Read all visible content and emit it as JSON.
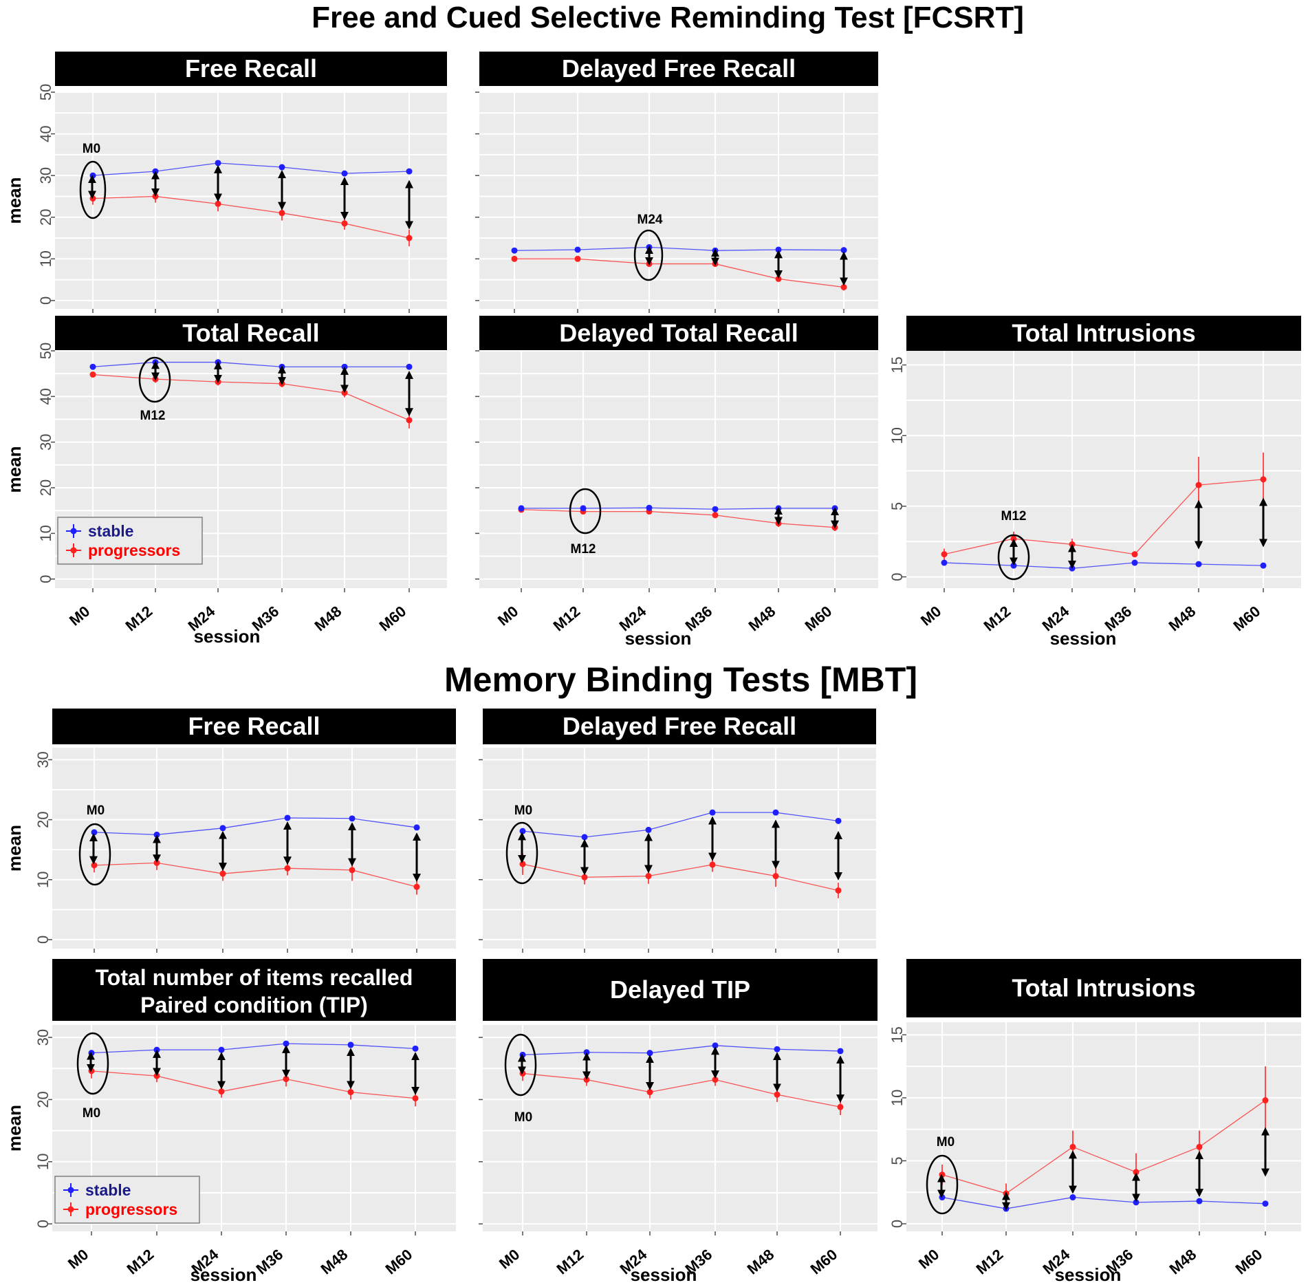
{
  "colors": {
    "stable": "#1f1fff",
    "progressors": "#ff2020",
    "panel": "#ebebeb",
    "strip": "#000000"
  },
  "sections": [
    {
      "title": "Free and Cued Selective Reminding Test [FCSRT]"
    },
    {
      "title": "Memory Binding Tests [MBT]"
    }
  ],
  "chart_data": [
    {
      "type": "line",
      "section": "FCSRT",
      "title": "Free Recall",
      "categories": [
        "M0",
        "M12",
        "M24",
        "M36",
        "M48",
        "M60"
      ],
      "ylim": [
        -2,
        50
      ],
      "yticks": [
        0,
        10,
        20,
        30,
        40,
        50
      ],
      "ylabel": "mean",
      "xlabel": "",
      "series": [
        {
          "name": "stable",
          "values": [
            30,
            31,
            33,
            32,
            30.5,
            31
          ],
          "err": [
            0.4,
            0.4,
            0.4,
            0.4,
            0.4,
            0.4
          ]
        },
        {
          "name": "progressors",
          "values": [
            24.5,
            25,
            23.2,
            21,
            18.5,
            15
          ],
          "err": [
            1.5,
            1.5,
            1.8,
            1.8,
            1.5,
            2
          ]
        }
      ],
      "annotation": {
        "label": "M0",
        "category": "M0"
      }
    },
    {
      "type": "line",
      "section": "FCSRT",
      "title": "Delayed Free Recall",
      "categories": [
        "M0",
        "M12",
        "M24",
        "M36",
        "M48",
        "M60"
      ],
      "ylim": [
        -2,
        50
      ],
      "yticks": [],
      "ylabel": "",
      "xlabel": "",
      "series": [
        {
          "name": "stable",
          "values": [
            12,
            12.2,
            12.8,
            12,
            12.2,
            12.1
          ],
          "err": [
            0.3,
            0.3,
            0.3,
            0.3,
            0.3,
            0.3
          ]
        },
        {
          "name": "progressors",
          "values": [
            10,
            10,
            8.8,
            8.8,
            5.2,
            3.2
          ],
          "err": [
            0.4,
            0.4,
            0.6,
            0.6,
            0.6,
            0.8
          ]
        }
      ],
      "annotation": {
        "label": "M24",
        "category": "M24"
      }
    },
    {
      "type": "line",
      "section": "FCSRT",
      "title": "Total Recall",
      "categories": [
        "M0",
        "M12",
        "M24",
        "M36",
        "M48",
        "M60"
      ],
      "ylim": [
        -2,
        50
      ],
      "yticks": [
        0,
        10,
        20,
        30,
        40,
        50
      ],
      "ylabel": "mean",
      "xlabel": "session",
      "series": [
        {
          "name": "stable",
          "values": [
            46.5,
            47.5,
            47.5,
            46.5,
            46.5,
            46.5
          ],
          "err": [
            0.3,
            0.3,
            0.3,
            0.3,
            0.3,
            0.3
          ]
        },
        {
          "name": "progressors",
          "values": [
            44.8,
            43.8,
            43.2,
            42.8,
            40.8,
            34.8
          ],
          "err": [
            0.6,
            0.8,
            0.8,
            0.8,
            1,
            1.8
          ]
        }
      ],
      "annotation": {
        "label": "M12",
        "category": "M12"
      },
      "legend": [
        "stable",
        "progressors"
      ]
    },
    {
      "type": "line",
      "section": "FCSRT",
      "title": "Delayed Total Recall",
      "categories": [
        "M0",
        "M12",
        "M24",
        "M36",
        "M48",
        "M60"
      ],
      "ylim": [
        -2,
        50
      ],
      "yticks": [],
      "ylabel": "",
      "xlabel": "session",
      "series": [
        {
          "name": "stable",
          "values": [
            15.5,
            15.5,
            15.6,
            15.3,
            15.5,
            15.5
          ],
          "err": [
            0.2,
            0.2,
            0.2,
            0.2,
            0.2,
            0.2
          ]
        },
        {
          "name": "progressors",
          "values": [
            15.2,
            14.8,
            14.8,
            14,
            12.2,
            11.3
          ],
          "err": [
            0.3,
            0.4,
            0.4,
            0.5,
            0.8,
            0.8
          ]
        }
      ],
      "annotation": {
        "label": "M12",
        "category": "M12"
      }
    },
    {
      "type": "line",
      "section": "FCSRT",
      "title": "Total Intrusions",
      "categories": [
        "M0",
        "M12",
        "M24",
        "M36",
        "M48",
        "M60"
      ],
      "ylim": [
        -0.8,
        16
      ],
      "yticks": [
        0,
        5,
        10,
        15
      ],
      "ylabel": "",
      "xlabel": "session",
      "series": [
        {
          "name": "stable",
          "values": [
            1,
            0.8,
            0.6,
            1,
            0.9,
            0.8
          ],
          "err": [
            0.1,
            0.1,
            0.1,
            0.1,
            0.1,
            0.1
          ]
        },
        {
          "name": "progressors",
          "values": [
            1.6,
            2.7,
            2.3,
            1.6,
            6.5,
            6.9
          ],
          "err": [
            0.4,
            0.5,
            0.4,
            0.2,
            2,
            1.9
          ]
        }
      ],
      "annotation": {
        "label": "M12",
        "category": "M12"
      }
    },
    {
      "type": "line",
      "section": "MBT",
      "title": "Free Recall",
      "categories": [
        "M0",
        "M12",
        "M24",
        "M36",
        "M48",
        "M60"
      ],
      "ylim": [
        -1.5,
        32
      ],
      "yticks": [
        0,
        10,
        20,
        30
      ],
      "ylabel": "mean",
      "xlabel": "",
      "series": [
        {
          "name": "stable",
          "values": [
            17.9,
            17.5,
            18.6,
            20.3,
            20.2,
            18.7
          ],
          "err": [
            0.3,
            0.3,
            0.3,
            0.3,
            0.3,
            0.3
          ]
        },
        {
          "name": "progressors",
          "values": [
            12.4,
            12.8,
            11,
            11.9,
            11.6,
            8.8
          ],
          "err": [
            1.2,
            1.2,
            1.2,
            1.2,
            1.8,
            1.3
          ]
        }
      ],
      "annotation": {
        "label": "M0",
        "category": "M0"
      }
    },
    {
      "type": "line",
      "section": "MBT",
      "title": "Delayed Free Recall",
      "categories": [
        "M0",
        "M12",
        "M24",
        "M36",
        "M48",
        "M60"
      ],
      "ylim": [
        -1.5,
        32
      ],
      "yticks": [],
      "ylabel": "",
      "xlabel": "",
      "series": [
        {
          "name": "stable",
          "values": [
            18.1,
            17.1,
            18.3,
            21.2,
            21.2,
            19.8
          ],
          "err": [
            0.5,
            0.3,
            0.3,
            0.3,
            0.3,
            0.3
          ]
        },
        {
          "name": "progressors",
          "values": [
            12.6,
            10.4,
            10.6,
            12.5,
            10.6,
            8.2
          ],
          "err": [
            1.8,
            1.2,
            1.3,
            1.2,
            1.8,
            1.3
          ]
        }
      ],
      "annotation": {
        "label": "M0",
        "category": "M0"
      }
    },
    {
      "type": "line",
      "section": "MBT",
      "title": "Total number of items recalled",
      "subtitle": "Paired condition (TIP)",
      "categories": [
        "M0",
        "M12",
        "M24",
        "M36",
        "M48",
        "M60"
      ],
      "ylim": [
        -1.2,
        32
      ],
      "yticks": [
        0,
        10,
        20,
        30
      ],
      "ylabel": "mean",
      "xlabel": "session",
      "series": [
        {
          "name": "stable",
          "values": [
            27.5,
            28,
            28,
            29,
            28.8,
            28.2
          ],
          "err": [
            0.3,
            0.3,
            0.3,
            0.3,
            0.3,
            0.3
          ]
        },
        {
          "name": "progressors",
          "values": [
            24.6,
            23.8,
            21.3,
            23.3,
            21.2,
            20.2
          ],
          "err": [
            1.2,
            1,
            1,
            1.2,
            1.2,
            1.3
          ]
        }
      ],
      "annotation": {
        "label": "M0",
        "category": "M0"
      },
      "legend": [
        "stable",
        "progressors"
      ]
    },
    {
      "type": "line",
      "section": "MBT",
      "title": "Delayed TIP",
      "categories": [
        "M0",
        "M12",
        "M24",
        "M36",
        "M48",
        "M60"
      ],
      "ylim": [
        -1.2,
        32
      ],
      "yticks": [],
      "ylabel": "",
      "xlabel": "session",
      "series": [
        {
          "name": "stable",
          "values": [
            27.2,
            27.6,
            27.5,
            28.7,
            28.1,
            27.8
          ],
          "err": [
            0.3,
            0.3,
            0.3,
            0.3,
            0.3,
            0.3
          ]
        },
        {
          "name": "progressors",
          "values": [
            24.2,
            23.2,
            21.2,
            23.2,
            20.8,
            18.8
          ],
          "err": [
            1.2,
            1,
            1,
            1,
            1.2,
            1.3
          ]
        }
      ],
      "annotation": {
        "label": "M0",
        "category": "M0"
      }
    },
    {
      "type": "line",
      "section": "MBT",
      "title": "Total Intrusions",
      "categories": [
        "M0",
        "M12",
        "M24",
        "M36",
        "M48",
        "M60"
      ],
      "ylim": [
        -0.6,
        16
      ],
      "yticks": [
        0,
        5,
        10,
        15
      ],
      "ylabel": "",
      "xlabel": "session",
      "series": [
        {
          "name": "stable",
          "values": [
            2.1,
            1.2,
            2.1,
            1.7,
            1.8,
            1.6
          ],
          "err": [
            0.15,
            0.15,
            0.15,
            0.15,
            0.15,
            0.15
          ]
        },
        {
          "name": "progressors",
          "values": [
            3.9,
            2.4,
            6.1,
            4.1,
            6.1,
            9.8
          ],
          "err": [
            0.8,
            0.8,
            1.3,
            1.5,
            1.3,
            2.7
          ]
        }
      ],
      "annotation": {
        "label": "M0",
        "category": "M0"
      }
    }
  ]
}
